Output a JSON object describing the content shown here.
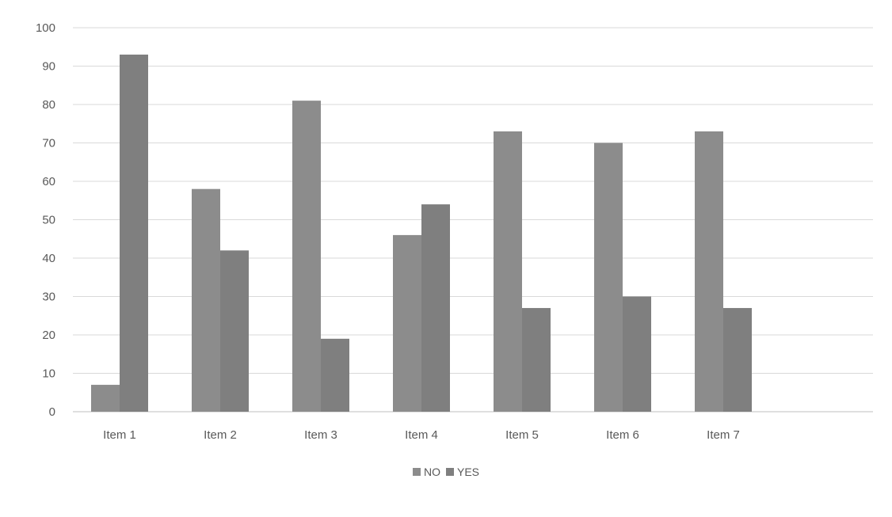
{
  "chart_data": {
    "type": "bar",
    "categories": [
      "Item 1",
      "Item 2",
      "Item 3",
      "Item 4",
      "Item 5",
      "Item 6",
      "Item 7"
    ],
    "series": [
      {
        "name": "NO",
        "values": [
          7,
          58,
          81,
          46,
          73,
          70,
          73
        ],
        "color": "#8c8c8c"
      },
      {
        "name": "YES",
        "values": [
          93,
          42,
          19,
          54,
          27,
          30,
          27
        ],
        "color": "#7f7f7f"
      }
    ],
    "title": "",
    "xlabel": "",
    "ylabel": "",
    "ylim": [
      0,
      100
    ],
    "ytick_step": 10,
    "grid": true,
    "legend_position": "bottom"
  }
}
